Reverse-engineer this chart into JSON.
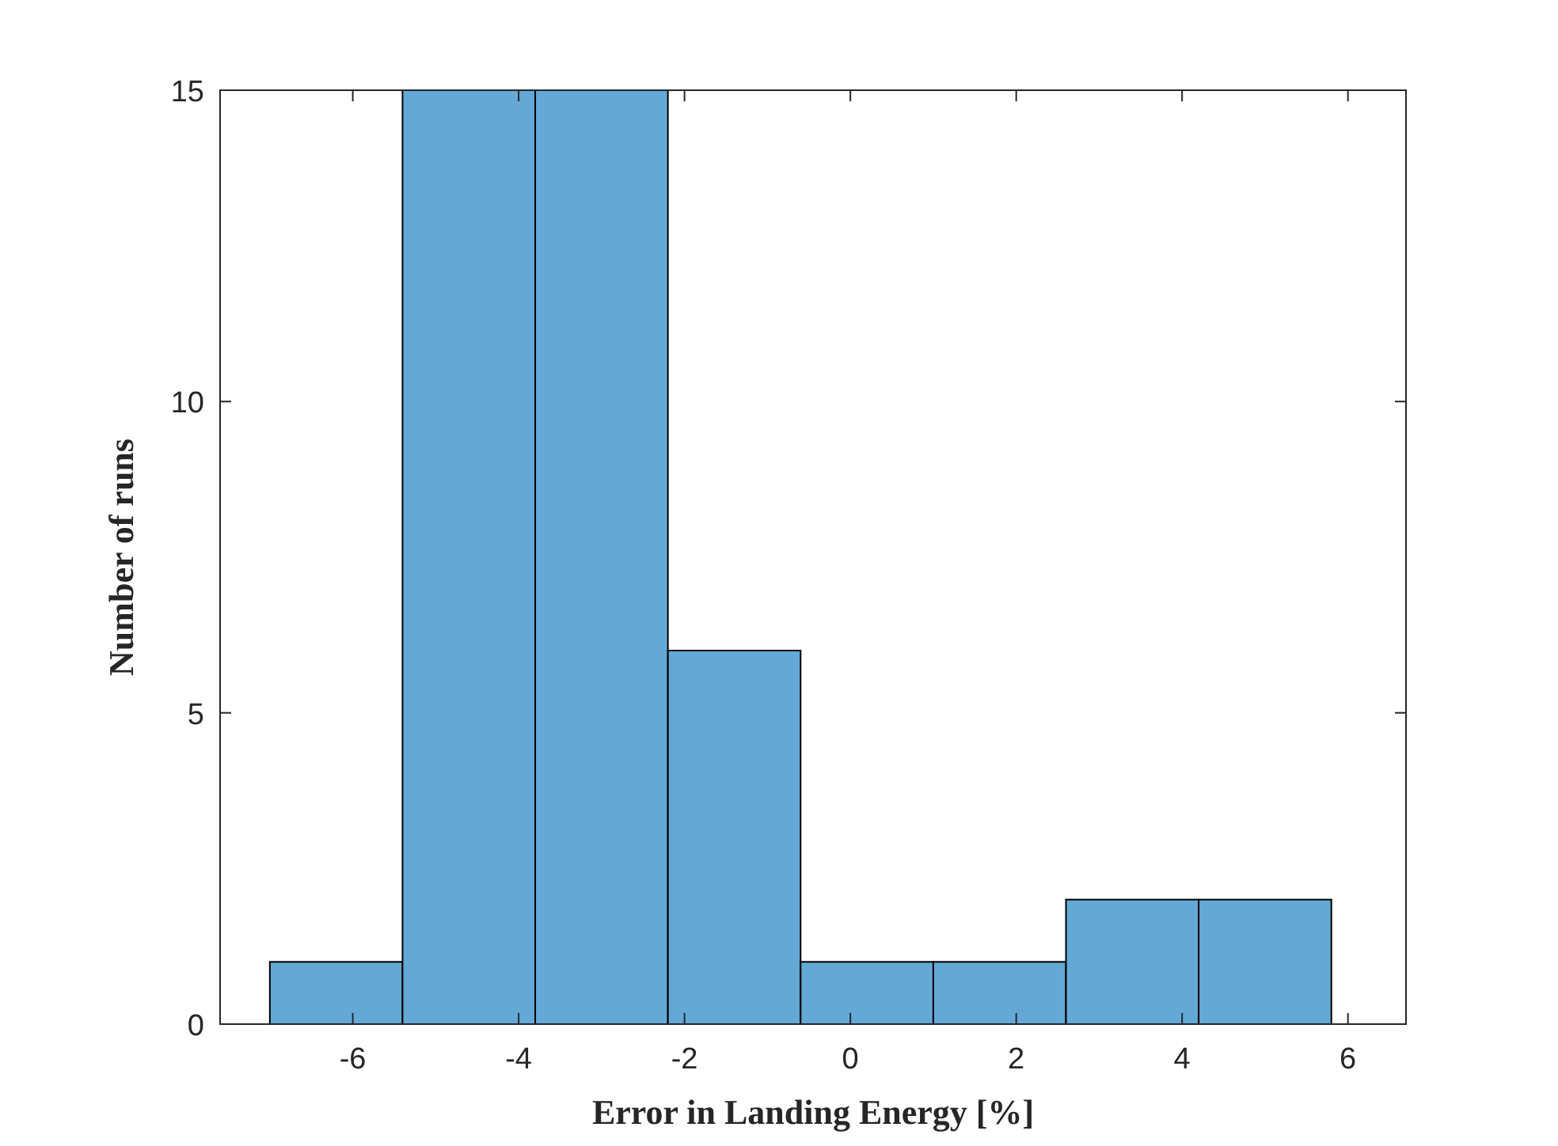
{
  "chart_data": {
    "type": "histogram",
    "xlabel": "Error in Landing Energy [%]",
    "ylabel": "Number of runs",
    "bins": [
      -7,
      -5.4,
      -3.8,
      -2.2,
      -0.6,
      1.0,
      2.6,
      4.2,
      5.8
    ],
    "values": [
      1,
      15,
      15,
      6,
      1,
      1,
      2,
      2
    ],
    "color": "#64a9d6",
    "xlim": [
      -7.6,
      6.7
    ],
    "xticks": [
      {
        "value": -6,
        "label": "-6"
      },
      {
        "value": -4,
        "label": "-4"
      },
      {
        "value": -2,
        "label": "-2"
      },
      0,
      2,
      4,
      6
    ],
    "ylim": [
      0,
      15
    ],
    "yticks": [
      0,
      5,
      10,
      15
    ],
    "grid": false
  }
}
